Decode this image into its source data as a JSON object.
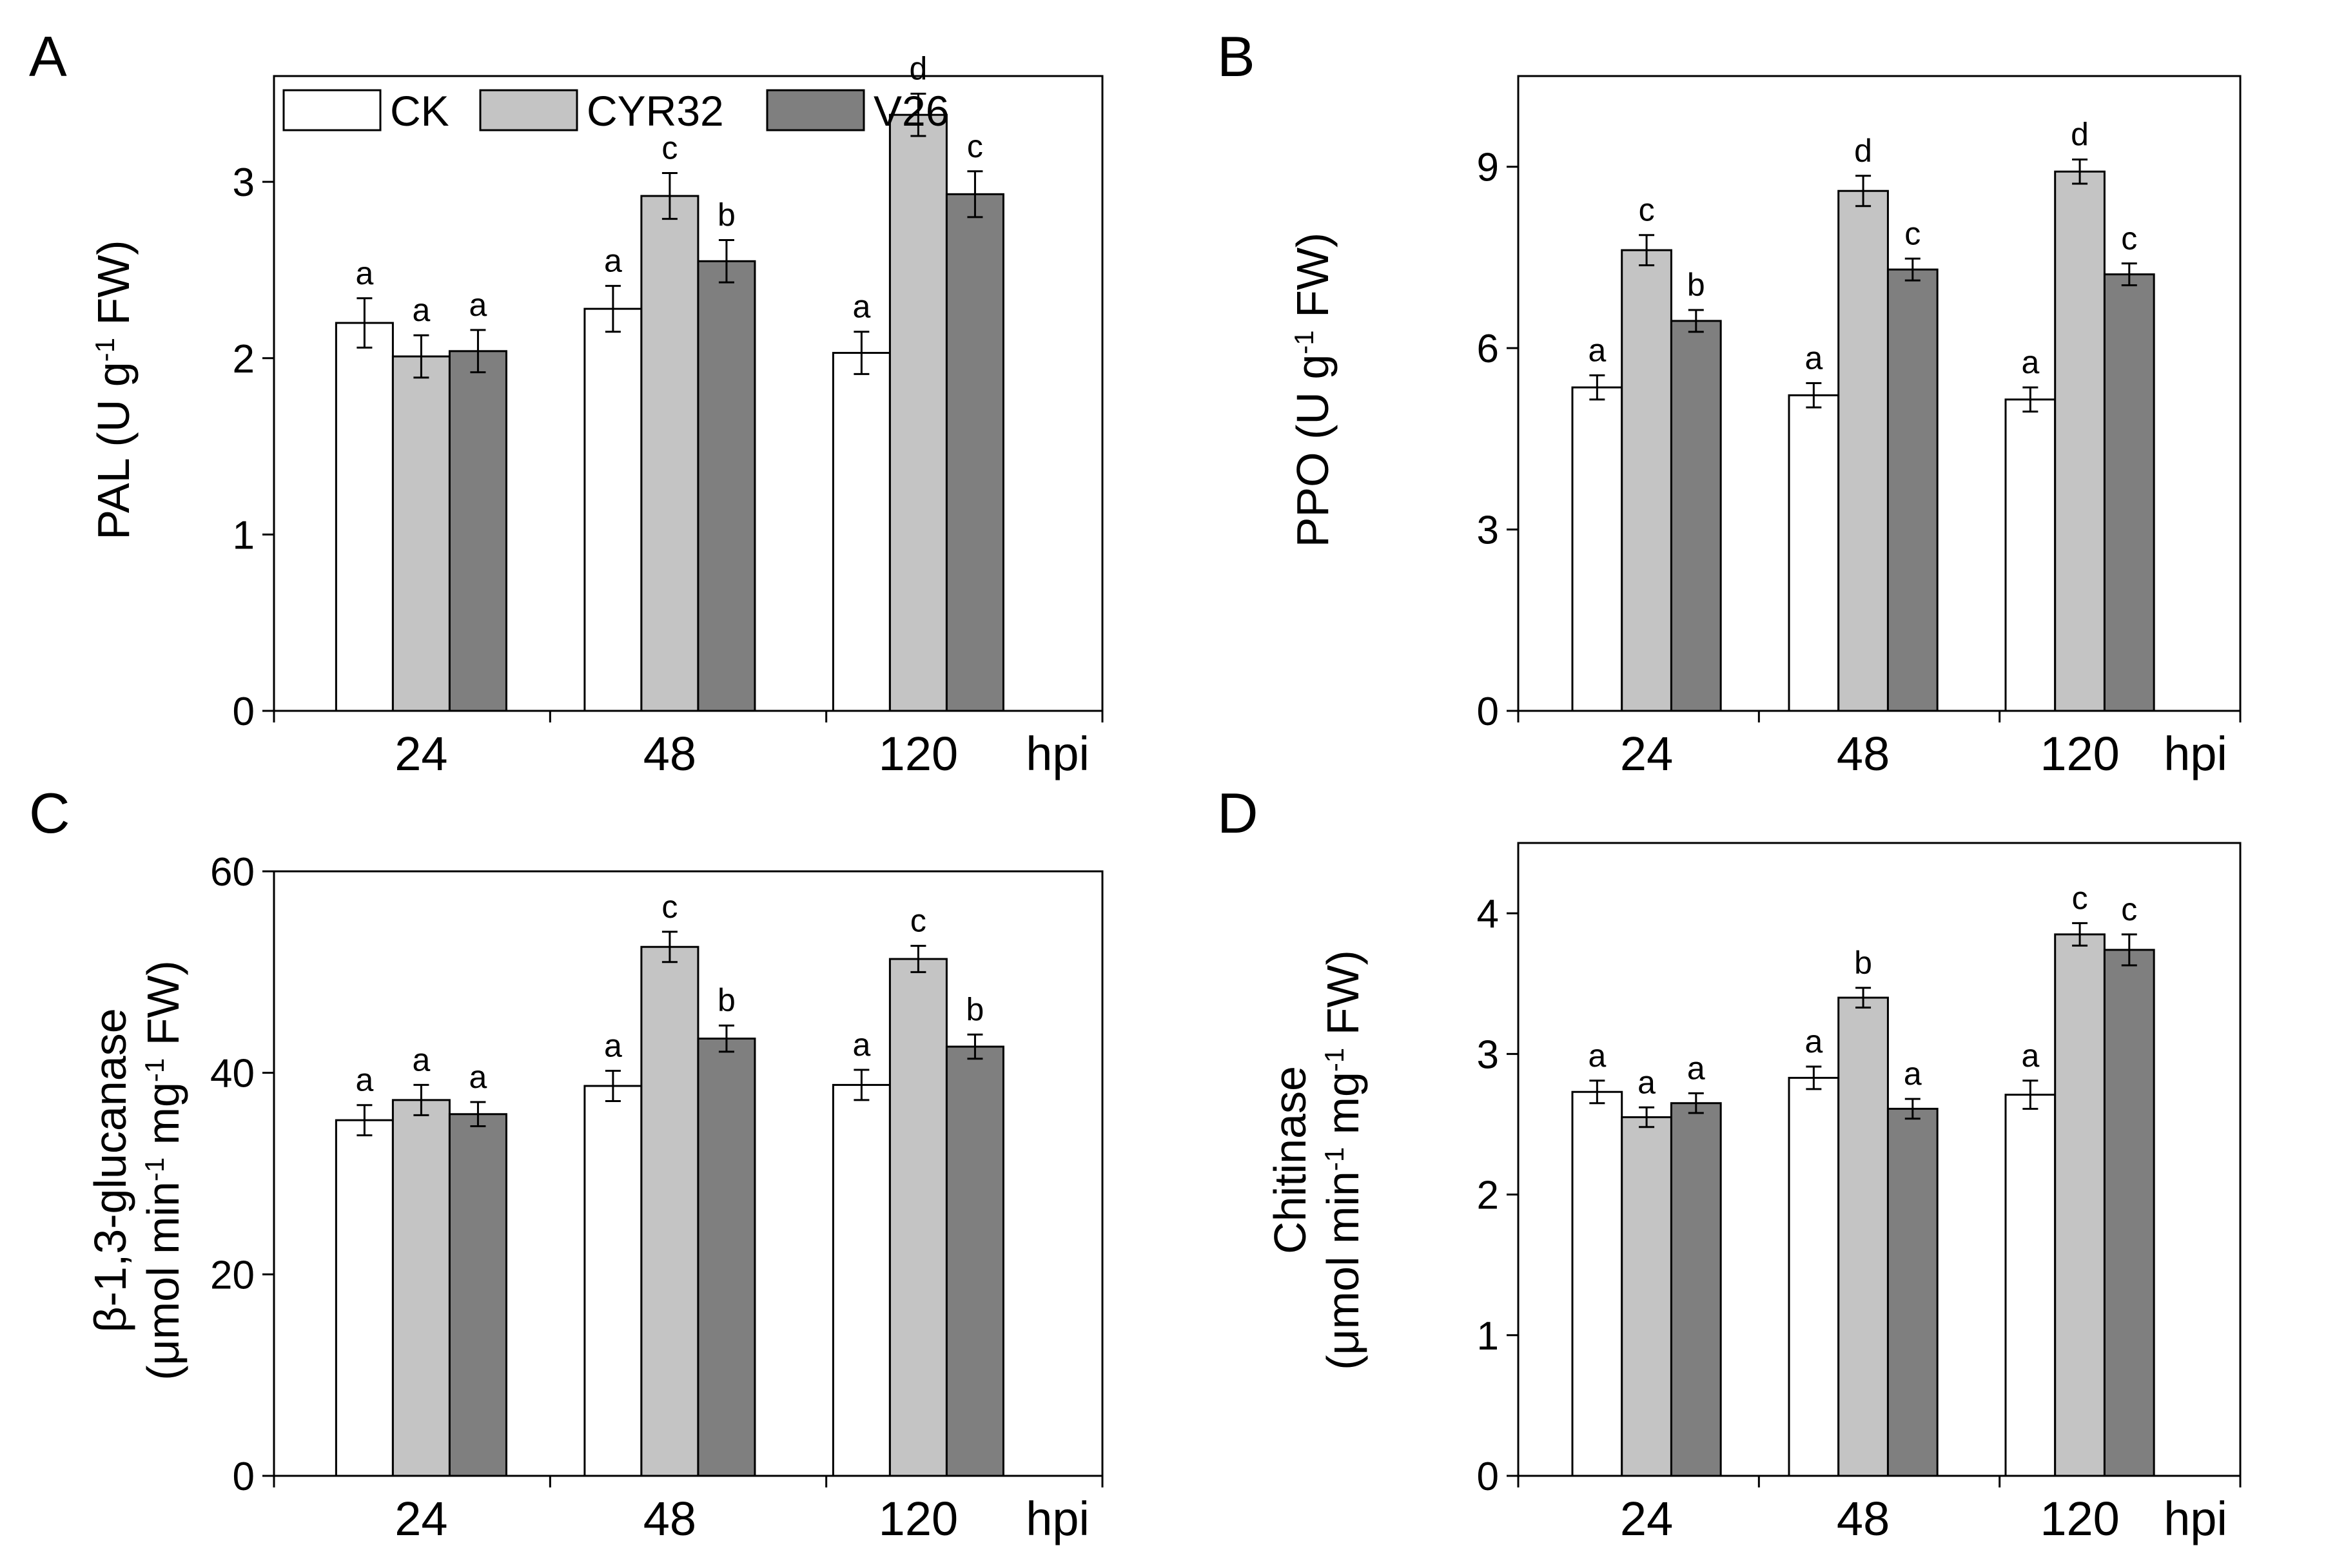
{
  "figure": {
    "colors": {
      "CK": "#ffffff",
      "CYR32": "#c4c4c4",
      "V26": "#7f7f7f",
      "axis": "#000000"
    }
  },
  "chart_data": [
    {
      "panel": "A",
      "type": "bar",
      "ylabel_main": "PAL (U g",
      "ylabel_sup": "-1",
      "ylabel_tail": " FW)",
      "categories": [
        "24",
        "48",
        "120"
      ],
      "x_unit": "hpi",
      "ylim": [
        0,
        3.6
      ],
      "yticks": [
        0,
        1,
        2,
        3
      ],
      "legend": [
        "CK",
        "CYR32",
        "V26"
      ],
      "series": [
        {
          "name": "CK",
          "values": [
            2.2,
            2.28,
            2.03
          ],
          "errors": [
            0.14,
            0.13,
            0.12
          ],
          "letters": [
            "a",
            "a",
            "a"
          ]
        },
        {
          "name": "CYR32",
          "values": [
            2.01,
            2.92,
            3.38
          ],
          "errors": [
            0.12,
            0.13,
            0.12
          ],
          "letters": [
            "a",
            "c",
            "d"
          ]
        },
        {
          "name": "V26",
          "values": [
            2.04,
            2.55,
            2.93
          ],
          "errors": [
            0.12,
            0.12,
            0.13
          ],
          "letters": [
            "a",
            "b",
            "c"
          ]
        }
      ]
    },
    {
      "panel": "B",
      "type": "bar",
      "ylabel_main": "PPO (U g",
      "ylabel_sup": "-1",
      "ylabel_tail": " FW)",
      "categories": [
        "24",
        "48",
        "120"
      ],
      "x_unit": "hpi",
      "ylim": [
        0,
        10.5
      ],
      "yticks": [
        0,
        3,
        6,
        9
      ],
      "series": [
        {
          "name": "CK",
          "values": [
            5.35,
            5.22,
            5.15
          ],
          "errors": [
            0.2,
            0.2,
            0.2
          ],
          "letters": [
            "a",
            "a",
            "a"
          ]
        },
        {
          "name": "CYR32",
          "values": [
            7.62,
            8.6,
            8.92
          ],
          "errors": [
            0.25,
            0.25,
            0.2
          ],
          "letters": [
            "c",
            "d",
            "d"
          ]
        },
        {
          "name": "V26",
          "values": [
            6.45,
            7.3,
            7.22
          ],
          "errors": [
            0.18,
            0.18,
            0.18
          ],
          "letters": [
            "b",
            "c",
            "c"
          ]
        }
      ]
    },
    {
      "panel": "C",
      "type": "bar",
      "ylabel_line1": "β-1,3-glucanase",
      "ylabel_main": "(μmol min",
      "ylabel_sup": "-1",
      "ylabel_mid": " mg",
      "ylabel_sup2": "-1",
      "ylabel_tail": " FW)",
      "categories": [
        "24",
        "48",
        "120"
      ],
      "x_unit": "hpi",
      "ylim": [
        0,
        60
      ],
      "yticks": [
        0,
        20,
        40,
        60
      ],
      "series": [
        {
          "name": "CK",
          "values": [
            35.3,
            38.7,
            38.8
          ],
          "errors": [
            1.5,
            1.5,
            1.5
          ],
          "letters": [
            "a",
            "a",
            "a"
          ]
        },
        {
          "name": "CYR32",
          "values": [
            37.3,
            52.5,
            51.3
          ],
          "errors": [
            1.5,
            1.5,
            1.3
          ],
          "letters": [
            "a",
            "c",
            "c"
          ]
        },
        {
          "name": "V26",
          "values": [
            35.9,
            43.4,
            42.6
          ],
          "errors": [
            1.2,
            1.3,
            1.2
          ],
          "letters": [
            "a",
            "b",
            "b"
          ]
        }
      ]
    },
    {
      "panel": "D",
      "type": "bar",
      "ylabel_line1": "Chitinase",
      "ylabel_main": "(μmol min",
      "ylabel_sup": "-1",
      "ylabel_mid": " mg",
      "ylabel_sup2": "-1",
      "ylabel_tail": " FW)",
      "categories": [
        "24",
        "48",
        "120"
      ],
      "x_unit": "hpi",
      "ylim": [
        0,
        4.5
      ],
      "yticks": [
        0,
        1,
        2,
        3,
        4
      ],
      "series": [
        {
          "name": "CK",
          "values": [
            2.73,
            2.83,
            2.71
          ],
          "errors": [
            0.08,
            0.08,
            0.1
          ],
          "letters": [
            "a",
            "a",
            "a"
          ]
        },
        {
          "name": "CYR32",
          "values": [
            2.55,
            3.4,
            3.85
          ],
          "errors": [
            0.07,
            0.07,
            0.08
          ],
          "letters": [
            "a",
            "b",
            "c"
          ]
        },
        {
          "name": "V26",
          "values": [
            2.65,
            2.61,
            3.74
          ],
          "errors": [
            0.07,
            0.07,
            0.11
          ],
          "letters": [
            "a",
            "a",
            "c"
          ]
        }
      ]
    }
  ]
}
